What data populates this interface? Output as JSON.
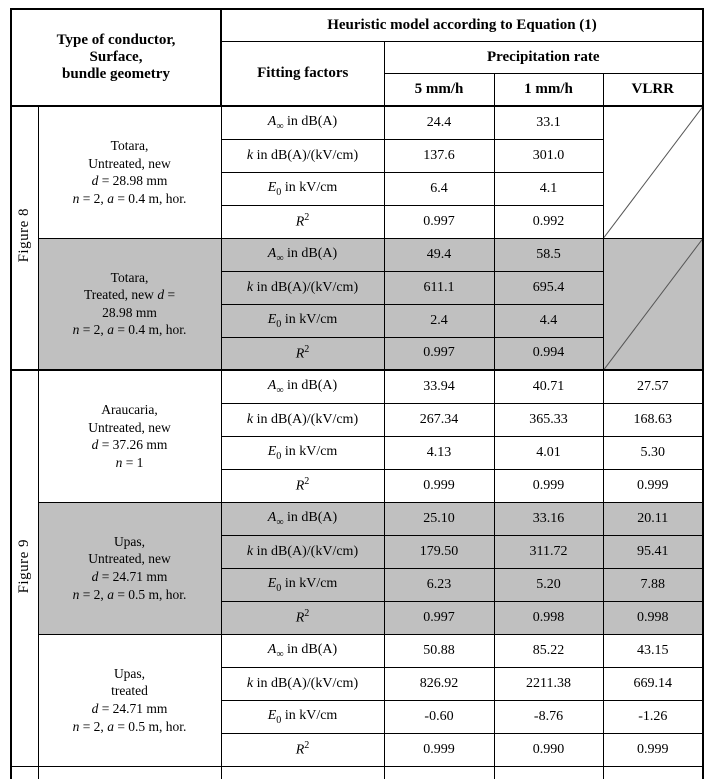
{
  "colors": {
    "shaded_row": "#c0c0c0",
    "border": "#000000",
    "diagonal_line": "#555555",
    "background": "#ffffff"
  },
  "header": {
    "conductor_col": [
      "Type of conductor,",
      "Surface,",
      "bundle geometry"
    ],
    "model_title": "Heuristic model according to Equation (1)",
    "fitting_factors": "Fitting factors",
    "precipitation_rate": "Precipitation rate",
    "rate_columns": [
      "5 mm/h",
      "1 mm/h",
      "VLRR"
    ]
  },
  "factors": {
    "a_inf": "*A*_∞_ in dB(A)",
    "k": "*k* in dB(A)/(kV/cm)",
    "e0": "*E*_0_ in kV/cm",
    "r2": "*R*^2^"
  },
  "figure_labels": {
    "fig8": "Figure 8",
    "fig9": "Figure 9"
  },
  "blocks": [
    {
      "figure": "Figure 8",
      "shaded": false,
      "vlrr": "diagonal",
      "description": [
        "Totara,",
        "Untreated, new",
        "*d* = 28.98 mm",
        "*n* = 2, *a* = 0.4 m, hor."
      ],
      "values": {
        "a_inf": [
          "24.4",
          "33.1"
        ],
        "k": [
          "137.6",
          "301.0"
        ],
        "e0": [
          "6.4",
          "4.1"
        ],
        "r2": [
          "0.997",
          "0.992"
        ]
      }
    },
    {
      "figure": "Figure 8",
      "shaded": true,
      "vlrr": "diagonal",
      "description": [
        "Totara,",
        "Treated, new *d* =",
        "28.98 mm",
        "*n* = 2, *a* = 0.4 m, hor."
      ],
      "values": {
        "a_inf": [
          "49.4",
          "58.5"
        ],
        "k": [
          "611.1",
          "695.4"
        ],
        "e0": [
          "2.4",
          "4.4"
        ],
        "r2": [
          "0.997",
          "0.994"
        ]
      }
    },
    {
      "figure": "Figure 9",
      "shaded": false,
      "vlrr": "values",
      "description": [
        "Araucaria,",
        "Untreated, new",
        "*d* = 37.26 mm",
        "*n* = 1"
      ],
      "values": {
        "a_inf": [
          "33.94",
          "40.71",
          "27.57"
        ],
        "k": [
          "267.34",
          "365.33",
          "168.63"
        ],
        "e0": [
          "4.13",
          "4.01",
          "5.30"
        ],
        "r2": [
          "0.999",
          "0.999",
          "0.999"
        ]
      }
    },
    {
      "figure": "Figure 9",
      "shaded": true,
      "vlrr": "values",
      "description": [
        "Upas,",
        "Untreated, new",
        "*d* = 24.71 mm",
        "*n* = 2, *a* = 0.5 m, hor."
      ],
      "values": {
        "a_inf": [
          "25.10",
          "33.16",
          "20.11"
        ],
        "k": [
          "179.50",
          "311.72",
          "95.41"
        ],
        "e0": [
          "6.23",
          "5.20",
          "7.88"
        ],
        "r2": [
          "0.997",
          "0.998",
          "0.998"
        ]
      }
    },
    {
      "figure": "Figure 9",
      "shaded": false,
      "vlrr": "values",
      "description": [
        "Upas,",
        "treated",
        "*d* = 24.71 mm",
        "*n* = 2, *a* = 0.5 m, hor."
      ],
      "values": {
        "a_inf": [
          "50.88",
          "85.22",
          "43.15"
        ],
        "k": [
          "826.92",
          "2211.38",
          "669.14"
        ],
        "e0": [
          "-0.60",
          "-8.76",
          "-1.26"
        ],
        "r2": [
          "0.999",
          "0.990",
          "0.999"
        ]
      }
    }
  ]
}
